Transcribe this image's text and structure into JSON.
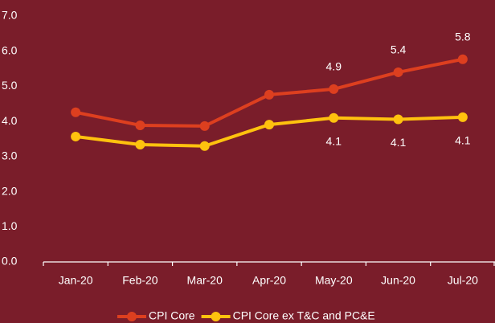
{
  "chart_data": {
    "type": "line",
    "categories": [
      "Jan-20",
      "Feb-20",
      "Mar-20",
      "Apr-20",
      "May-20",
      "Jun-20",
      "Jul-20"
    ],
    "series": [
      {
        "name": "CPI Core",
        "color": "#dd3f1f",
        "values": [
          4.26,
          3.89,
          3.87,
          4.76,
          4.92,
          5.4,
          5.77
        ],
        "value_labels": [
          null,
          null,
          null,
          null,
          "4.9",
          "5.4",
          "5.8"
        ]
      },
      {
        "name": "CPI Core ex T&C and PC&E",
        "color": "#ffc20e",
        "values": [
          3.57,
          3.34,
          3.3,
          3.91,
          4.1,
          4.06,
          4.12
        ],
        "value_labels": [
          null,
          null,
          null,
          null,
          "4.1",
          "4.1",
          "4.1"
        ]
      }
    ],
    "ylim": [
      0,
      7
    ],
    "yticks": [
      {
        "value": 0,
        "label": "0.0"
      },
      {
        "value": 1,
        "label": "1.0"
      },
      {
        "value": 2,
        "label": "2.0"
      },
      {
        "value": 3,
        "label": "3.0"
      },
      {
        "value": 4,
        "label": "4.0"
      },
      {
        "value": 5,
        "label": "5.0"
      },
      {
        "value": 6,
        "label": "6.0"
      },
      {
        "value": 7,
        "label": "7.0"
      }
    ],
    "grid": false,
    "legend": "bottom"
  }
}
